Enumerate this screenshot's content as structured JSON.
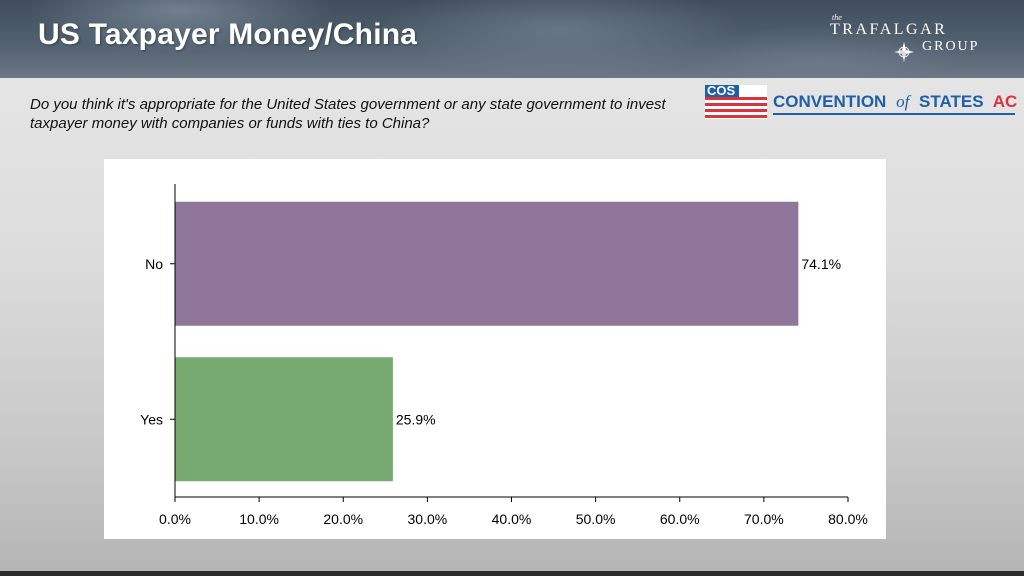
{
  "slide": {
    "title": "US Taxpayer Money/China",
    "question": "Do you think it's appropriate for the United States government or any state government to invest taxpayer money with companies or funds with ties to China?"
  },
  "brand": {
    "line1": "the",
    "line2": "TRAFALGAR",
    "line3": "GROUP"
  },
  "cos_logo": {
    "mark": "COS",
    "text": "CONVENTION",
    "of": "of",
    "text2": "STATES",
    "action": "ACTION"
  },
  "colors": {
    "no": "#8e7599",
    "yes": "#77aa70",
    "cos_blue": "#1f5fa8",
    "cos_red": "#d8343c"
  },
  "chart_data": {
    "type": "bar",
    "orientation": "horizontal",
    "categories": [
      "No",
      "Yes"
    ],
    "values": [
      74.1,
      25.9
    ],
    "value_labels": [
      "74.1%",
      "25.9%"
    ],
    "xlim": [
      0,
      80
    ],
    "xticks": [
      "0.0%",
      "10.0%",
      "20.0%",
      "30.0%",
      "40.0%",
      "50.0%",
      "60.0%",
      "70.0%",
      "80.0%"
    ],
    "title": "",
    "xlabel": "",
    "ylabel": "",
    "grid": false,
    "legend": "none"
  }
}
